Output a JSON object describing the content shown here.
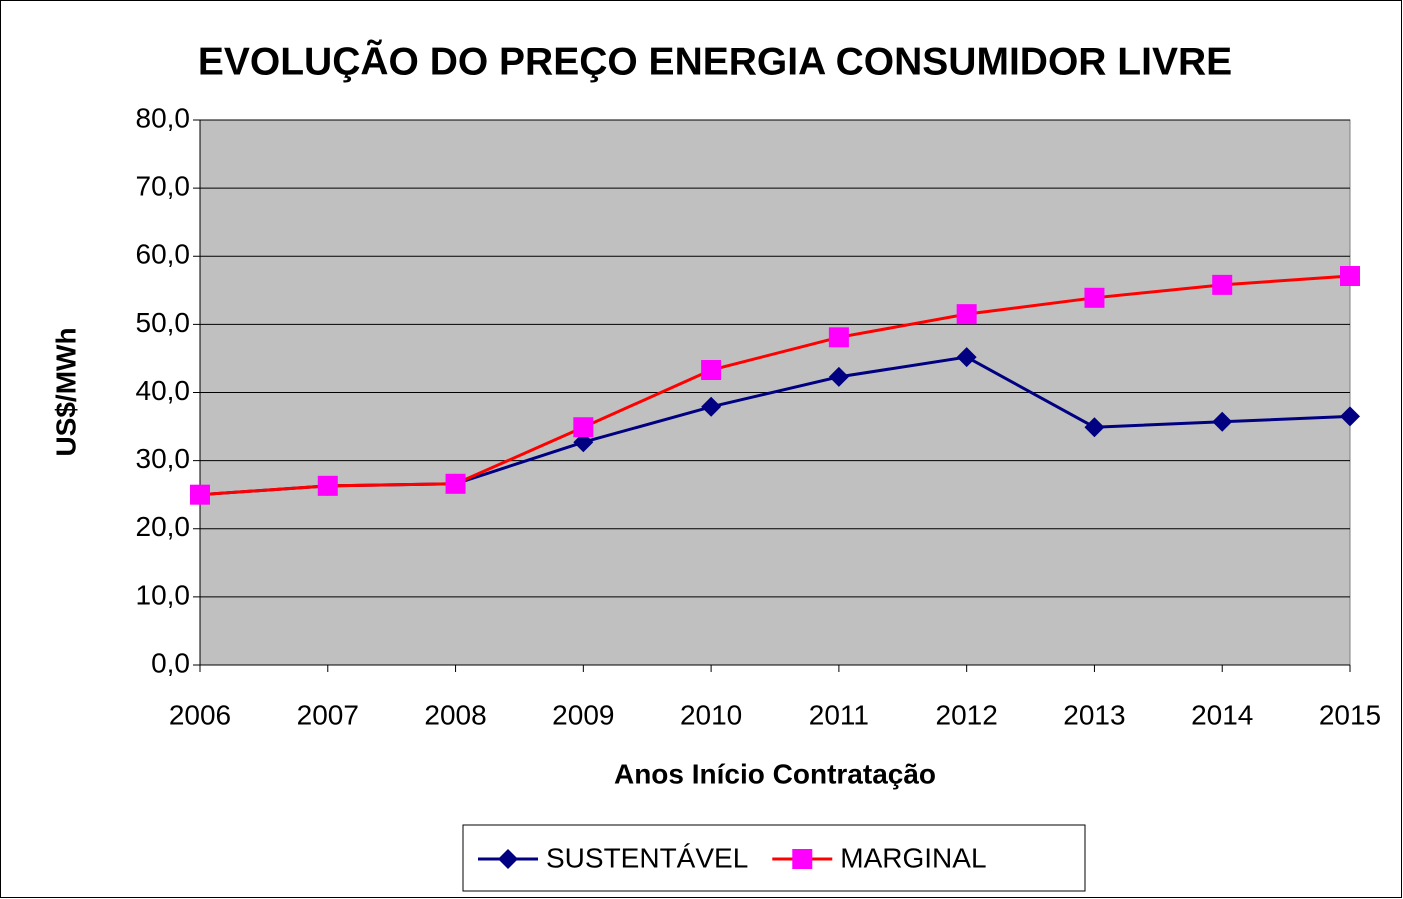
{
  "chart_data": {
    "type": "line",
    "title": "EVOLUÇÃO DO PREÇO ENERGIA CONSUMIDOR LIVRE",
    "x_label": "Anos Início Contratação",
    "y_label": "US$/MWh",
    "categories": [
      "2006",
      "2007",
      "2008",
      "2009",
      "2010",
      "2011",
      "2012",
      "2013",
      "2014",
      "2015"
    ],
    "series": [
      {
        "name": "SUSTENTÁVEL",
        "color": "#000080",
        "marker": "diamond",
        "marker_color": "#000080",
        "values": [
          25.0,
          26.3,
          26.6,
          32.7,
          37.9,
          42.3,
          45.2,
          34.9,
          35.7,
          36.5
        ]
      },
      {
        "name": "MARGINAL",
        "color": "#ff0000",
        "marker": "square",
        "marker_color": "#ff00ff",
        "values": [
          25.0,
          26.3,
          26.6,
          34.9,
          43.3,
          48.1,
          51.5,
          53.9,
          55.8,
          57.1
        ]
      }
    ],
    "ylim": [
      0,
      80
    ],
    "yticks": [
      {
        "value": 0,
        "label": "0,0"
      },
      {
        "value": 10,
        "label": "10,0"
      },
      {
        "value": 20,
        "label": "20,0"
      },
      {
        "value": 30,
        "label": "30,0"
      },
      {
        "value": 40,
        "label": "40,0"
      },
      {
        "value": 50,
        "label": "50,0"
      },
      {
        "value": 60,
        "label": "60,0"
      },
      {
        "value": 70,
        "label": "70,0"
      },
      {
        "value": 80,
        "label": "80,0"
      }
    ],
    "grid": true,
    "plot_background": "#c0c0c0",
    "legend": "bottom"
  }
}
